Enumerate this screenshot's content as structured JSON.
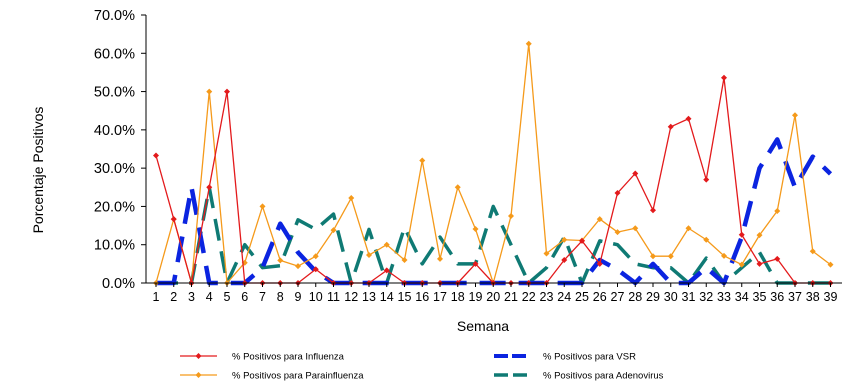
{
  "chart_data": {
    "type": "line",
    "title": "",
    "xlabel": "Semana",
    "ylabel": "Porcentaje Positivos",
    "ylim": [
      0,
      70
    ],
    "y_ticks": [
      "0.0%",
      "10.0%",
      "20.0%",
      "30.0%",
      "40.0%",
      "50.0%",
      "60.0%",
      "70.0%"
    ],
    "categories": [
      "1",
      "2",
      "3",
      "4",
      "5",
      "6",
      "7",
      "8",
      "9",
      "10",
      "11",
      "12",
      "13",
      "14",
      "15",
      "16",
      "17",
      "18",
      "19",
      "20",
      "21",
      "22",
      "23",
      "24",
      "25",
      "26",
      "27",
      "28",
      "29",
      "30",
      "31",
      "32",
      "33",
      "34",
      "35",
      "36",
      "37",
      "38",
      "39"
    ],
    "grid": false,
    "legend_position": "bottom",
    "series": [
      {
        "name": "% Positivos para Influenza",
        "color": "#e31a1c",
        "style": "solid-diamond",
        "values": [
          33.3,
          16.7,
          0,
          25,
          50,
          0,
          0,
          0,
          0,
          3.6,
          0,
          0,
          0,
          3.3,
          0,
          0,
          0,
          0,
          5,
          0,
          0,
          0,
          0,
          6,
          11,
          5,
          23.5,
          28.6,
          19,
          40.8,
          42.9,
          27,
          53.6,
          12.6,
          5,
          6.3,
          0,
          0,
          0
        ]
      },
      {
        "name": "% Positivos para Parainfluenza",
        "color": "#f59a1b",
        "style": "solid-diamond",
        "values": [
          0,
          16.7,
          0,
          50,
          0,
          5.3,
          20,
          5.9,
          4.4,
          7,
          13.8,
          22.2,
          7.3,
          10,
          6,
          32,
          6.3,
          25,
          14.1,
          0,
          17.5,
          62.5,
          7.7,
          11.3,
          11.1,
          16.7,
          13.3,
          14.3,
          7,
          7,
          14.3,
          11.3,
          7.1,
          4.8,
          12.5,
          18.8,
          43.8,
          8.3,
          4.8
        ]
      },
      {
        "name": "% Positivos para VSR",
        "color": "#0b24e0",
        "style": "thick-dash",
        "values": [
          0,
          0,
          25,
          0,
          0,
          0,
          4,
          15.5,
          8,
          3,
          0,
          0,
          0,
          0,
          0,
          0,
          0,
          0,
          0,
          0,
          0,
          0,
          0,
          0,
          0,
          6,
          3.5,
          0,
          5,
          0,
          0,
          4,
          0,
          12,
          30,
          37.5,
          25,
          33,
          28.5
        ]
      },
      {
        "name": "% Positivos para Adenovirus",
        "color": "#0f7a74",
        "style": "thick-dash",
        "values": [
          0,
          0,
          0,
          25,
          0,
          10,
          4,
          4.5,
          16.5,
          14,
          18,
          0,
          14,
          0,
          14.5,
          5,
          12,
          5,
          5,
          20,
          10,
          0,
          4,
          12,
          0,
          11,
          10,
          5,
          4,
          4,
          0,
          6.5,
          0,
          4,
          8,
          0,
          0,
          0,
          0
        ]
      }
    ]
  },
  "legend": {
    "items": [
      {
        "label": "% Positivos para Influenza"
      },
      {
        "label": "% Positivos para VSR"
      },
      {
        "label": "% Positivos para Parainfluenza"
      },
      {
        "label": "% Positivos para Adenovirus"
      }
    ]
  }
}
